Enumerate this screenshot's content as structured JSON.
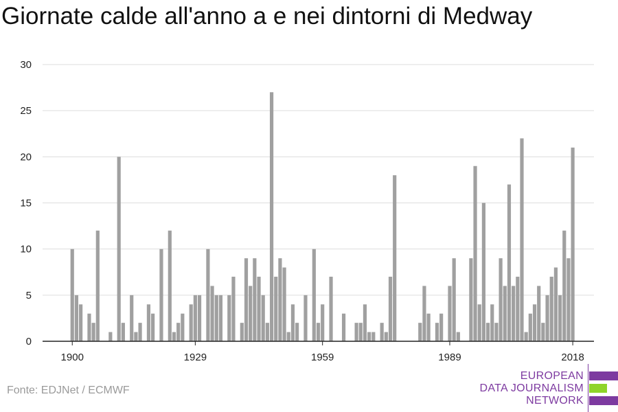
{
  "title": "Giornate calde all'anno a e nei dintorni di Medway",
  "source": "Fonte: EDJNet / ECMWF",
  "logo": {
    "lines": [
      "EUROPEAN",
      "DATA JOURNALISM",
      "NETWORK"
    ],
    "colors": [
      "#7d3aa0",
      "#8fd42a",
      "#7d3aa0"
    ]
  },
  "chart_data": {
    "type": "bar",
    "bar_color": "#a0a0a0",
    "grid": true,
    "xlim": [
      1893,
      2023
    ],
    "ylim": [
      0,
      30
    ],
    "y_ticks": [
      0,
      5,
      10,
      15,
      20,
      25,
      30
    ],
    "x_ticks": [
      1900,
      1929,
      1959,
      1989,
      2018
    ],
    "xlabel": "",
    "ylabel": "",
    "x": [
      1900,
      1901,
      1902,
      1903,
      1904,
      1905,
      1906,
      1907,
      1908,
      1909,
      1910,
      1911,
      1912,
      1913,
      1914,
      1915,
      1916,
      1917,
      1918,
      1919,
      1920,
      1921,
      1922,
      1923,
      1924,
      1925,
      1926,
      1927,
      1928,
      1929,
      1930,
      1931,
      1932,
      1933,
      1934,
      1935,
      1936,
      1937,
      1938,
      1939,
      1940,
      1941,
      1942,
      1943,
      1944,
      1945,
      1946,
      1947,
      1948,
      1949,
      1950,
      1951,
      1952,
      1953,
      1954,
      1955,
      1956,
      1957,
      1958,
      1959,
      1960,
      1961,
      1962,
      1963,
      1964,
      1965,
      1966,
      1967,
      1968,
      1969,
      1970,
      1971,
      1972,
      1973,
      1974,
      1975,
      1976,
      1977,
      1978,
      1979,
      1980,
      1981,
      1982,
      1983,
      1984,
      1985,
      1986,
      1987,
      1988,
      1989,
      1990,
      1991,
      1992,
      1993,
      1994,
      1995,
      1996,
      1997,
      1998,
      1999,
      2000,
      2001,
      2002,
      2003,
      2004,
      2005,
      2006,
      2007,
      2008,
      2009,
      2010,
      2011,
      2012,
      2013,
      2014,
      2015,
      2016,
      2017,
      2018
    ],
    "values": [
      10,
      5,
      4,
      0,
      3,
      2,
      12,
      0,
      0,
      1,
      0,
      20,
      2,
      0,
      5,
      1,
      2,
      0,
      4,
      3,
      0,
      10,
      0,
      12,
      1,
      2,
      3,
      0,
      4,
      5,
      5,
      0,
      10,
      6,
      5,
      5,
      0,
      5,
      7,
      0,
      2,
      9,
      6,
      9,
      7,
      5,
      2,
      27,
      7,
      9,
      8,
      1,
      4,
      2,
      0,
      5,
      0,
      10,
      2,
      4,
      0,
      7,
      0,
      0,
      3,
      0,
      0,
      2,
      2,
      4,
      1,
      1,
      0,
      2,
      1,
      7,
      18,
      0,
      0,
      0,
      0,
      0,
      2,
      6,
      3,
      0,
      2,
      3,
      0,
      6,
      9,
      1,
      0,
      0,
      9,
      19,
      4,
      15,
      2,
      4,
      2,
      9,
      6,
      17,
      6,
      7,
      22,
      1,
      3,
      4,
      6,
      2,
      5,
      7,
      8,
      5,
      12,
      9,
      21
    ]
  }
}
